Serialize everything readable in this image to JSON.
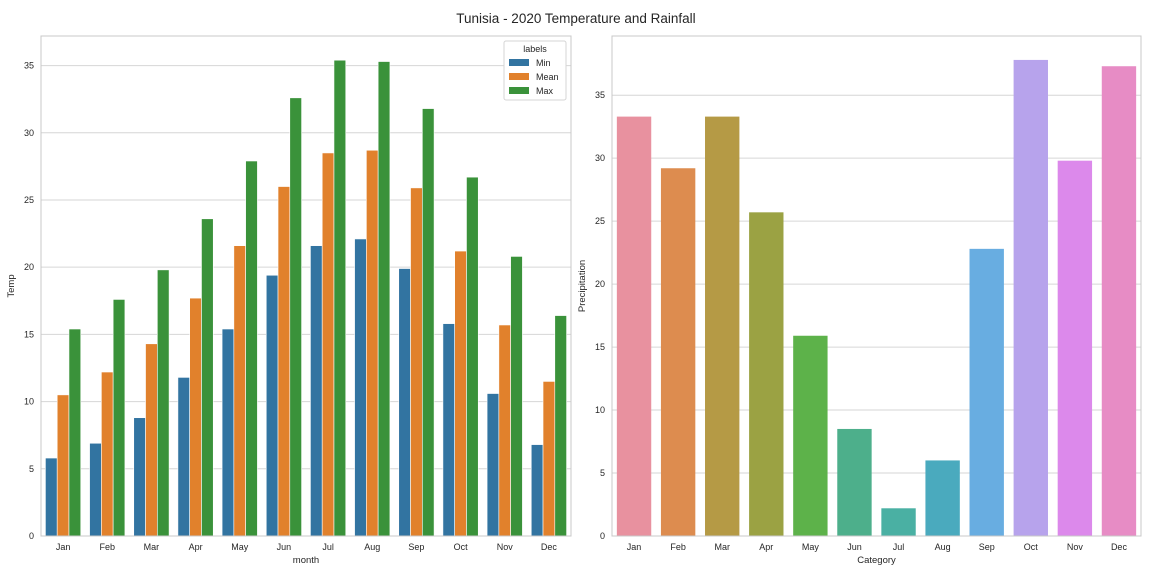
{
  "figure_title": "Tunisia - 2020 Temperature and Rainfall",
  "chart_data": [
    {
      "type": "bar",
      "name": "temperature",
      "categories": [
        "Jan",
        "Feb",
        "Mar",
        "Apr",
        "May",
        "Jun",
        "Jul",
        "Aug",
        "Sep",
        "Oct",
        "Nov",
        "Dec"
      ],
      "series": [
        {
          "name": "Min",
          "color": "#3274a1",
          "values": [
            5.8,
            6.9,
            8.8,
            11.8,
            15.4,
            19.4,
            21.6,
            22.1,
            19.9,
            15.8,
            10.6,
            6.8
          ]
        },
        {
          "name": "Mean",
          "color": "#e1812c",
          "values": [
            10.5,
            12.2,
            14.3,
            17.7,
            21.6,
            26.0,
            28.5,
            28.7,
            25.9,
            21.2,
            15.7,
            11.5
          ]
        },
        {
          "name": "Max",
          "color": "#3a923a",
          "values": [
            15.4,
            17.6,
            19.8,
            23.6,
            27.9,
            32.6,
            35.4,
            35.3,
            31.8,
            26.7,
            20.8,
            16.4
          ]
        }
      ],
      "xlabel": "month",
      "ylabel": "Temp",
      "ylim": [
        0,
        37.2
      ],
      "yticks": [
        0,
        5,
        10,
        15,
        20,
        25,
        30,
        35
      ],
      "legend_title": "labels",
      "legend_position": "top-right",
      "grid": "horizontal"
    },
    {
      "type": "bar",
      "name": "precipitation",
      "categories": [
        "Jan",
        "Feb",
        "Mar",
        "Apr",
        "May",
        "Jun",
        "Jul",
        "Aug",
        "Sep",
        "Oct",
        "Nov",
        "Dec"
      ],
      "values": [
        33.3,
        29.2,
        33.3,
        25.7,
        15.9,
        8.5,
        2.2,
        6.0,
        22.8,
        37.8,
        29.8,
        37.3
      ],
      "colors": [
        "#e8919f",
        "#dd8c4f",
        "#b59a45",
        "#9ba243",
        "#5db24a",
        "#4daf8b",
        "#4ab0a3",
        "#4aaabe",
        "#68ade1",
        "#b7a3ec",
        "#dc89eb",
        "#e78cc5"
      ],
      "xlabel": "Category",
      "ylabel": "Precipitation",
      "ylim": [
        0,
        39.7
      ],
      "yticks": [
        0,
        5,
        10,
        15,
        20,
        25,
        30,
        35
      ],
      "grid": "horizontal"
    }
  ]
}
